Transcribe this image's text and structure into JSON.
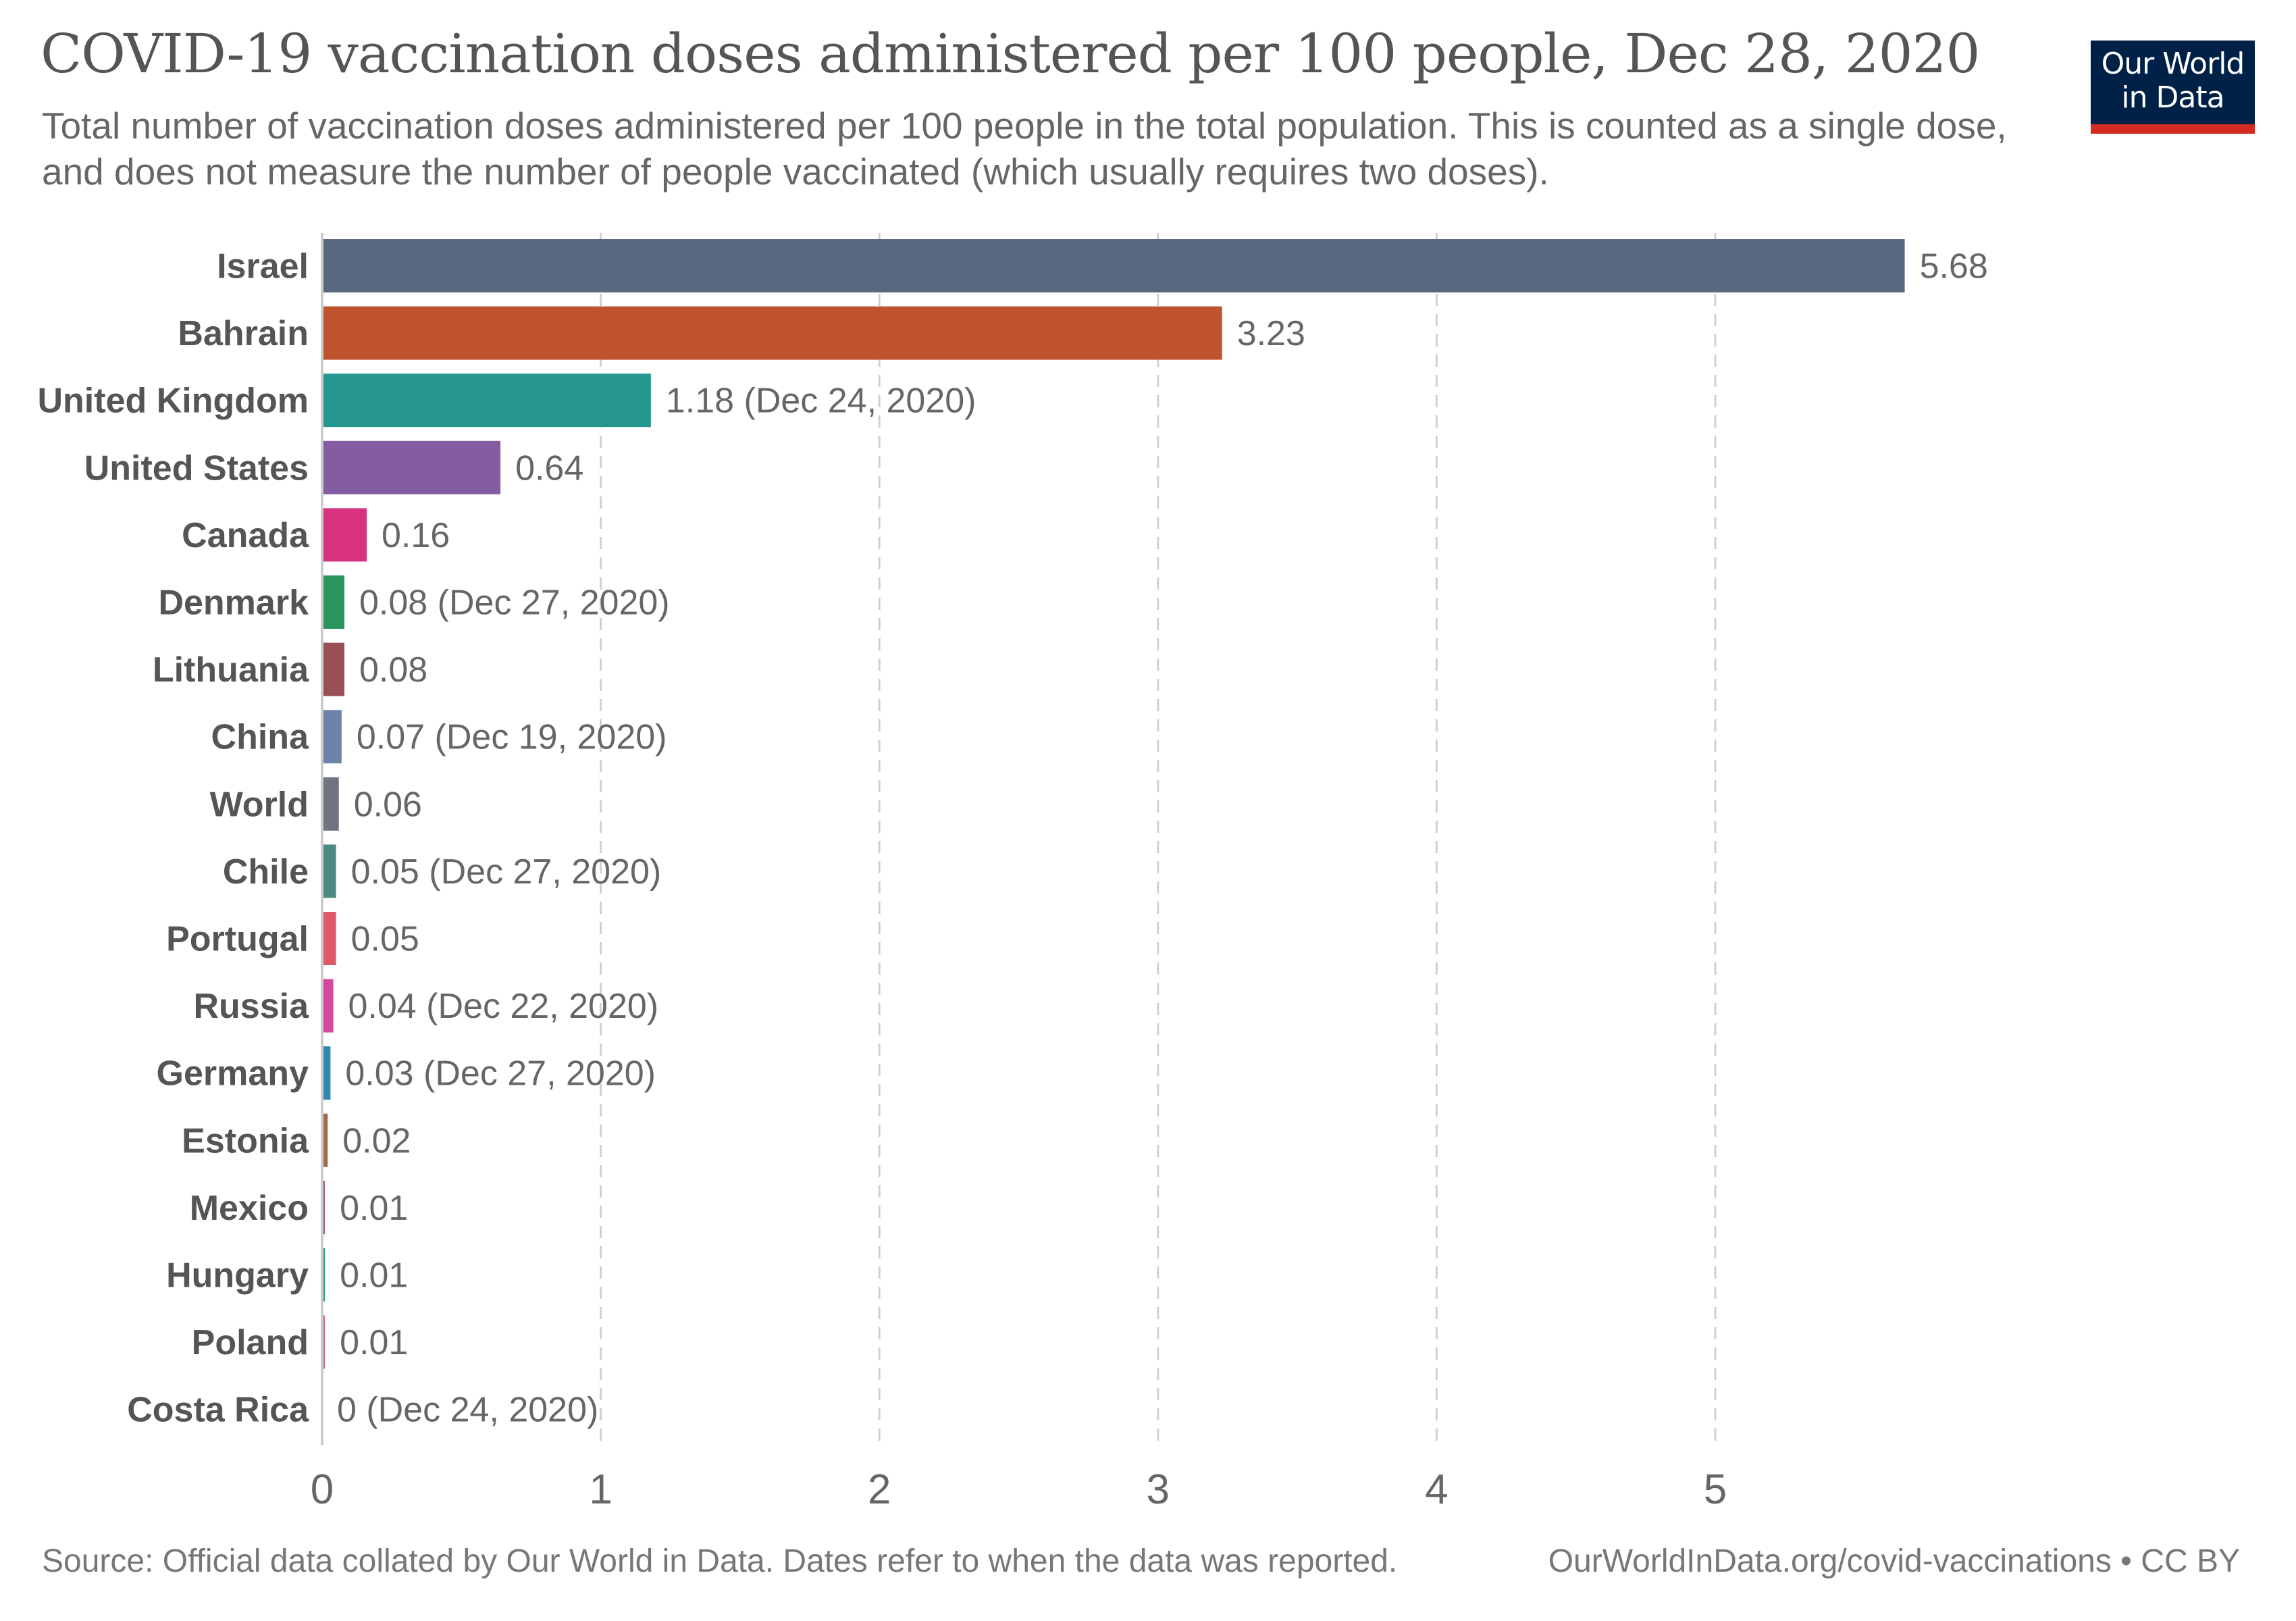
{
  "header": {
    "title": "COVID-19 vaccination doses administered per 100 people, Dec 28, 2020",
    "subtitle": "Total number of vaccination doses administered per 100 people in the total population. This is counted as a single dose, and does not measure the number of people vaccinated (which usually requires two doses).",
    "logo_line1": "Our World",
    "logo_line2": "in Data",
    "logo_colors": {
      "background": "#002147",
      "accent": "#d42b21"
    }
  },
  "footer": {
    "source": "Source: Official data collated by Our World in Data. Dates refer to when the data was reported.",
    "link": "OurWorldInData.org/covid-vaccinations • CC BY"
  },
  "chart_data": {
    "type": "bar",
    "orientation": "horizontal",
    "title": "COVID-19 vaccination doses administered per 100 people, Dec 28, 2020",
    "xlabel": "",
    "ylabel": "",
    "xlim": [
      0,
      5.68
    ],
    "xticks": [
      0,
      1,
      2,
      3,
      4,
      5
    ],
    "grid": "vertical dashed",
    "categories": [
      "Israel",
      "Bahrain",
      "United Kingdom",
      "United States",
      "Canada",
      "Denmark",
      "Lithuania",
      "China",
      "World",
      "Chile",
      "Portugal",
      "Russia",
      "Germany",
      "Estonia",
      "Mexico",
      "Hungary",
      "Poland",
      "Costa Rica"
    ],
    "values": [
      5.68,
      3.23,
      1.18,
      0.64,
      0.16,
      0.08,
      0.08,
      0.07,
      0.06,
      0.05,
      0.05,
      0.04,
      0.03,
      0.02,
      0.01,
      0.01,
      0.01,
      0
    ],
    "value_labels": [
      "5.68",
      "3.23",
      "1.18 (Dec 24, 2020)",
      "0.64",
      "0.16",
      "0.08 (Dec 27, 2020)",
      "0.08",
      "0.07 (Dec 19, 2020)",
      "0.06",
      "0.05 (Dec 27, 2020)",
      "0.05",
      "0.04 (Dec 22, 2020)",
      "0.03 (Dec 27, 2020)",
      "0.02",
      "0.01",
      "0.01",
      "0.01",
      "0 (Dec 24, 2020)"
    ],
    "colors": [
      "#59687E",
      "#BE532E",
      "#26978F",
      "#845CA1",
      "#D73180",
      "#2A955C",
      "#9A4E55",
      "#6D83AA",
      "#71747E",
      "#4A8A7F",
      "#DE5A6A",
      "#D4479A",
      "#2E88B0",
      "#A46A46",
      "#9E5C8A",
      "#2BA07A",
      "#D06A80",
      "#8F8F8F"
    ]
  }
}
